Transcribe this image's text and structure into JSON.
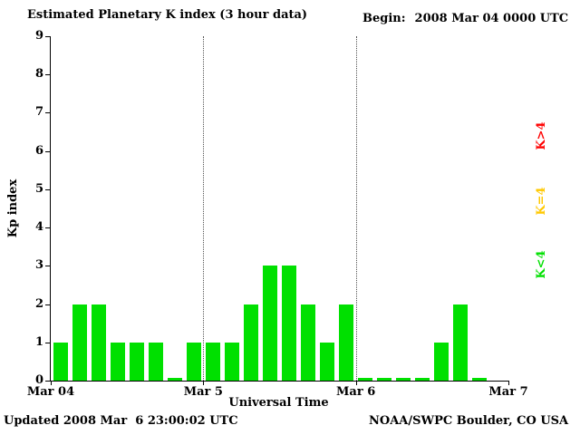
{
  "header": {
    "title": "Estimated Planetary K index (3 hour data)",
    "begin_label": "Begin:",
    "begin_value": "2008 Mar 04 0000 UTC"
  },
  "footer": {
    "updated": "Updated 2008 Mar  6 23:00:02 UTC",
    "source": "NOAA/SWPC Boulder, CO USA"
  },
  "legend": [
    {
      "label": "K>4",
      "color": "#ff0000"
    },
    {
      "label": "K=4",
      "color": "#ffc800"
    },
    {
      "label": "K<4",
      "color": "#00e000"
    }
  ],
  "chart_data": {
    "type": "bar",
    "title": "Estimated Planetary K index (3 hour data)",
    "begin": "2008 Mar 04 0000 UTC",
    "xlabel": "Universal Time",
    "ylabel": "Kp index",
    "ylim": [
      0,
      9
    ],
    "yticks": [
      0,
      1,
      2,
      3,
      4,
      5,
      6,
      7,
      8,
      9
    ],
    "day_labels": [
      "Mar 04",
      "Mar 5",
      "Mar 6",
      "Mar 7"
    ],
    "slots": 24,
    "hours_per_bar": 3,
    "values": [
      1,
      2,
      2,
      1,
      1,
      1,
      0,
      1,
      1,
      1,
      2,
      3,
      3,
      2,
      1,
      2,
      0,
      0,
      0,
      0,
      1,
      2,
      0
    ],
    "grid": "dotted vertical at day boundaries",
    "legend_position": "right, rotated",
    "threshold_colors": {
      "low": "#00e000",
      "mid": "#ffc800",
      "high": "#ff0000"
    }
  }
}
